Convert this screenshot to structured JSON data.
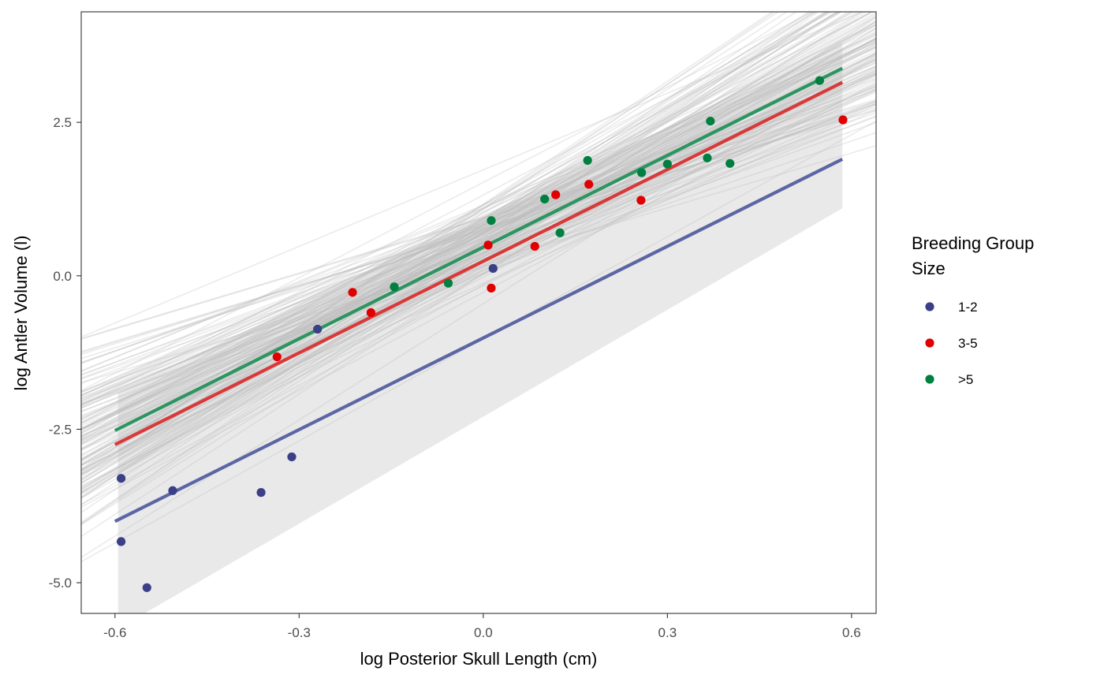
{
  "chart_data": {
    "type": "scatter",
    "xlabel": "log Posterior Skull Length (cm)",
    "ylabel": "log Antler Volume (l)",
    "xlim": [
      -0.655,
      0.64
    ],
    "ylim": [
      -5.5,
      4.3
    ],
    "x_ticks": [
      -0.6,
      -0.3,
      0.0,
      0.3,
      0.6
    ],
    "x_tick_labels": [
      "-0.6",
      "-0.3",
      "0.0",
      "0.3",
      "0.6"
    ],
    "y_ticks": [
      -5.0,
      -2.5,
      0.0,
      2.5
    ],
    "y_tick_labels": [
      "-5.0",
      "-2.5",
      "0.0",
      "2.5"
    ],
    "grid": false,
    "legend_position": "right",
    "legend_title_lines": [
      "Breeding Group",
      "Size"
    ],
    "ribbon": {
      "x": [
        -0.595,
        0.585
      ],
      "lower": [
        -5.75,
        1.1
      ],
      "upper": [
        -1.9,
        3.8
      ],
      "color": "#bfbfbf"
    },
    "posterior_lines": {
      "count": 150,
      "color": "#bdbdbd",
      "center_x": 0.02,
      "intercept_mean": 0.7,
      "intercept_sd": 0.4,
      "slope_mean": 5.0,
      "slope_sd": 1.15
    },
    "series": [
      {
        "name": "1-2",
        "color": "#3a3f88",
        "line_color": "#5b66a4",
        "line": {
          "x": [
            -0.6,
            0.585
          ],
          "y": [
            -4.0,
            1.9
          ]
        },
        "points": [
          {
            "x": -0.59,
            "y": -3.3
          },
          {
            "x": -0.59,
            "y": -4.33
          },
          {
            "x": -0.548,
            "y": -5.08
          },
          {
            "x": -0.506,
            "y": -3.5
          },
          {
            "x": -0.362,
            "y": -3.53
          },
          {
            "x": -0.312,
            "y": -2.95
          },
          {
            "x": -0.27,
            "y": -0.87
          },
          {
            "x": 0.016,
            "y": 0.12
          }
        ]
      },
      {
        "name": "3-5",
        "color": "#e00000",
        "line_color": "#d83a3a",
        "line": {
          "x": [
            -0.6,
            0.585
          ],
          "y": [
            -2.75,
            3.15
          ]
        },
        "points": [
          {
            "x": -0.336,
            "y": -1.32
          },
          {
            "x": -0.213,
            "y": -0.27
          },
          {
            "x": -0.183,
            "y": -0.6
          },
          {
            "x": 0.008,
            "y": 0.5
          },
          {
            "x": 0.013,
            "y": -0.2
          },
          {
            "x": 0.084,
            "y": 0.48
          },
          {
            "x": 0.118,
            "y": 1.32
          },
          {
            "x": 0.172,
            "y": 1.49
          },
          {
            "x": 0.257,
            "y": 1.23
          },
          {
            "x": 0.586,
            "y": 2.54
          }
        ]
      },
      {
        "name": ">5",
        "color": "#008040",
        "line_color": "#2e9460",
        "line": {
          "x": [
            -0.6,
            0.585
          ],
          "y": [
            -2.52,
            3.38
          ]
        },
        "points": [
          {
            "x": -0.145,
            "y": -0.18
          },
          {
            "x": -0.057,
            "y": -0.12
          },
          {
            "x": 0.013,
            "y": 0.9
          },
          {
            "x": 0.1,
            "y": 1.25
          },
          {
            "x": 0.125,
            "y": 0.7
          },
          {
            "x": 0.17,
            "y": 1.88
          },
          {
            "x": 0.258,
            "y": 1.68
          },
          {
            "x": 0.3,
            "y": 1.82
          },
          {
            "x": 0.365,
            "y": 1.92
          },
          {
            "x": 0.37,
            "y": 2.52
          },
          {
            "x": 0.402,
            "y": 1.83
          },
          {
            "x": 0.548,
            "y": 3.18
          }
        ]
      }
    ]
  }
}
